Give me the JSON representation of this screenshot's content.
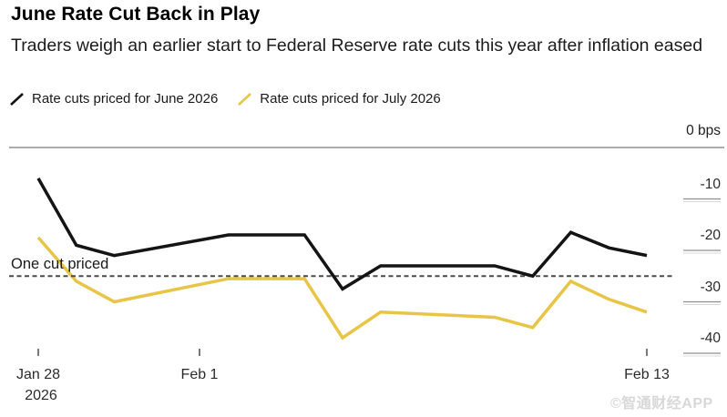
{
  "header": {
    "title": "June Rate Cut Back in Play",
    "subtitle": "Traders weigh an earlier start to Federal Reserve rate cuts this year after inflation eased"
  },
  "legend": {
    "items": [
      {
        "label": "Rate cuts priced for June 2026",
        "color": "#141414"
      },
      {
        "label": "Rate cuts priced for July 2026",
        "color": "#E8C547"
      }
    ]
  },
  "chart_data": {
    "type": "line",
    "title": "June Rate Cut Back in Play",
    "subtitle": "Traders weigh an earlier start to Federal Reserve rate cuts this year after inflation eased",
    "unit": "bps",
    "y_axis": {
      "top_label": "0 bps",
      "tick_values": [
        -10,
        -20,
        -30,
        -40
      ],
      "range": [
        -45,
        0
      ],
      "grid": "right-segments"
    },
    "x_axis": {
      "ticks": [
        {
          "label": "Jan 28",
          "sublabel": "2026",
          "day": 0
        },
        {
          "label": "Feb 1",
          "day": 4
        },
        {
          "label": "Feb 13",
          "day": 16
        }
      ]
    },
    "annotation": {
      "label": "One cut priced",
      "value_bps": -25,
      "style": "dashed"
    },
    "series": [
      {
        "name": "Rate cuts priced for June 2026",
        "color": "#141414",
        "dates": [
          "Jan 28",
          "Jan 29",
          "Jan 30",
          "Feb 2",
          "Feb 4",
          "Feb 5",
          "Feb 6",
          "Feb 9",
          "Feb 10",
          "Feb 11",
          "Feb 12",
          "Feb 13"
        ],
        "day_offsets": [
          0,
          1,
          2,
          5,
          7,
          8,
          9,
          12,
          13,
          14,
          15,
          16
        ],
        "values_bps": [
          -6,
          -19,
          -21,
          -17,
          -17,
          -27.5,
          -23,
          -23,
          -25,
          -16.5,
          -19.5,
          -21
        ]
      },
      {
        "name": "Rate cuts priced for July 2026",
        "color": "#E8C547",
        "dates": [
          "Jan 28",
          "Jan 29",
          "Jan 30",
          "Feb 2",
          "Feb 4",
          "Feb 5",
          "Feb 6",
          "Feb 9",
          "Feb 10",
          "Feb 11",
          "Feb 12",
          "Feb 13"
        ],
        "day_offsets": [
          0,
          1,
          2,
          5,
          7,
          8,
          9,
          12,
          13,
          14,
          15,
          16
        ],
        "values_bps": [
          -17.5,
          -26,
          -30,
          -25.5,
          -25.5,
          -37,
          -32,
          -33,
          -35,
          -26,
          -29.5,
          -32
        ]
      }
    ],
    "legend_position": "top-left"
  },
  "watermark": {
    "text": "©智通财经APP"
  }
}
